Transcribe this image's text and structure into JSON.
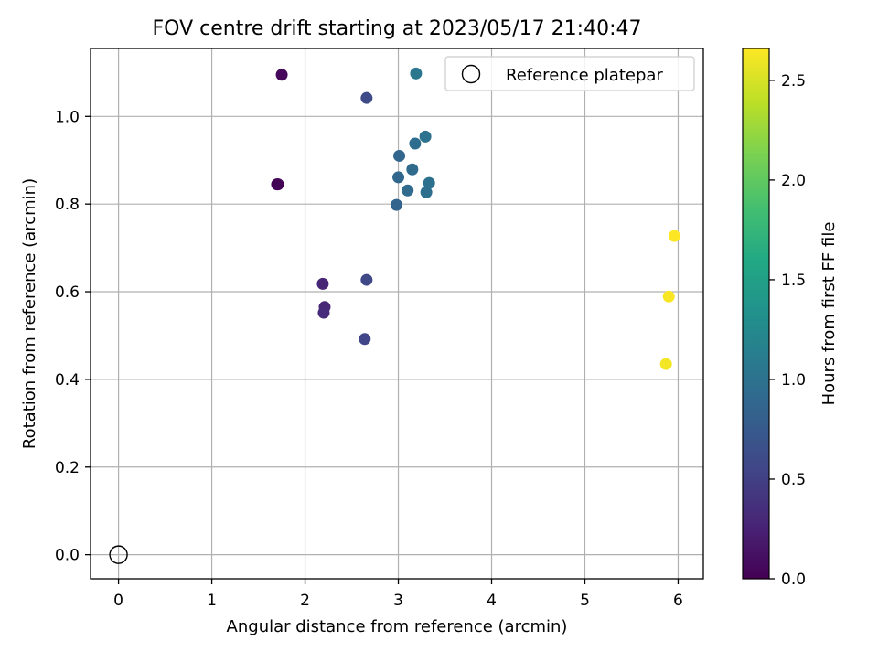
{
  "chart_data": {
    "type": "scatter",
    "title": "FOV centre drift starting at 2023/05/17 21:40:47",
    "xlabel": "Angular distance from reference (arcmin)",
    "ylabel": "Rotation from reference (arcmin)",
    "xlim": [
      -0.3,
      6.27
    ],
    "ylim": [
      -0.055,
      1.155
    ],
    "xticks": [
      0,
      1,
      2,
      3,
      4,
      5,
      6
    ],
    "xtick_labels": [
      "0",
      "1",
      "2",
      "3",
      "4",
      "5",
      "6"
    ],
    "yticks": [
      0.0,
      0.2,
      0.4,
      0.6,
      0.8,
      1.0
    ],
    "ytick_labels": [
      "0.0",
      "0.2",
      "0.4",
      "0.6",
      "0.8",
      "1.0"
    ],
    "grid": true,
    "legend": {
      "placement": "top-right",
      "entries": [
        "Reference platepar"
      ]
    },
    "reference_point": {
      "x": 0.0,
      "y": 0.0,
      "marker": "open-circle"
    },
    "colorbar": {
      "label": "Hours from first FF file",
      "colormap": "viridis",
      "range": [
        0.0,
        2.66
      ],
      "ticks": [
        0.0,
        0.5,
        1.0,
        1.5,
        2.0,
        2.5
      ],
      "tick_labels": [
        "0.0",
        "0.5",
        "1.0",
        "1.5",
        "2.0",
        "2.5"
      ]
    },
    "points": [
      {
        "x": 1.7,
        "y": 0.845,
        "hours": 0.0
      },
      {
        "x": 1.71,
        "y": 0.845,
        "hours": 0.02
      },
      {
        "x": 1.75,
        "y": 1.095,
        "hours": 0.05
      },
      {
        "x": 2.19,
        "y": 0.618,
        "hours": 0.28
      },
      {
        "x": 2.21,
        "y": 0.565,
        "hours": 0.3
      },
      {
        "x": 2.2,
        "y": 0.552,
        "hours": 0.32
      },
      {
        "x": 2.64,
        "y": 0.492,
        "hours": 0.55
      },
      {
        "x": 2.66,
        "y": 0.627,
        "hours": 0.58
      },
      {
        "x": 2.66,
        "y": 1.042,
        "hours": 0.6
      },
      {
        "x": 2.98,
        "y": 0.798,
        "hours": 0.85
      },
      {
        "x": 3.01,
        "y": 0.91,
        "hours": 0.87
      },
      {
        "x": 3.0,
        "y": 0.861,
        "hours": 0.88
      },
      {
        "x": 3.1,
        "y": 0.831,
        "hours": 0.92
      },
      {
        "x": 3.15,
        "y": 0.879,
        "hours": 0.93
      },
      {
        "x": 3.18,
        "y": 0.938,
        "hours": 0.95
      },
      {
        "x": 3.3,
        "y": 0.827,
        "hours": 0.97
      },
      {
        "x": 3.33,
        "y": 0.848,
        "hours": 0.98
      },
      {
        "x": 3.29,
        "y": 0.954,
        "hours": 1.0
      },
      {
        "x": 3.19,
        "y": 1.098,
        "hours": 1.05
      },
      {
        "x": 5.87,
        "y": 0.435,
        "hours": 2.62
      },
      {
        "x": 5.9,
        "y": 0.589,
        "hours": 2.64
      },
      {
        "x": 5.96,
        "y": 0.727,
        "hours": 2.66
      }
    ]
  }
}
